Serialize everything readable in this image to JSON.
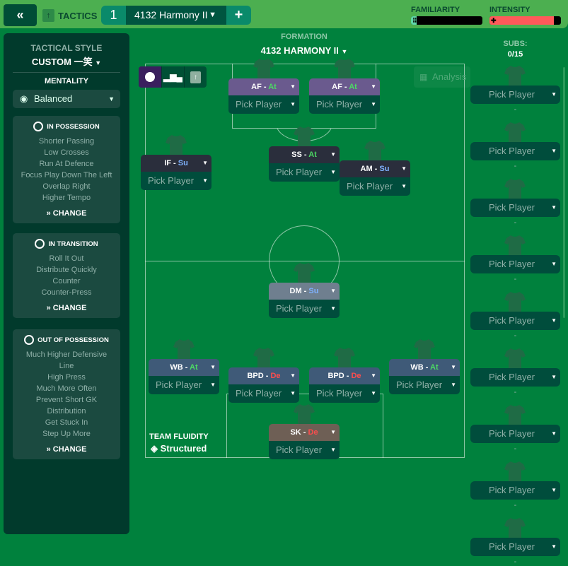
{
  "topbar": {
    "back_icon": "double-chevron-left",
    "section": "TACTICS",
    "tactic_slot": "1",
    "tactic_name": "4132 Harmony II",
    "add_label": "+",
    "familiarity_label": "FAMILIARITY",
    "familiarity_level": 0.08,
    "intensity_label": "INTENSITY",
    "intensity_level": 0.9,
    "colors": {
      "familiarity": "#5fd6a8",
      "intensity": "#ff5a5a"
    }
  },
  "left": {
    "tactical_style_label": "TACTICAL STYLE",
    "tactical_style": "CUSTOM 一笑",
    "mentality_label": "MENTALITY",
    "mentality": "Balanced",
    "cards": [
      {
        "title": "IN POSSESSION",
        "items": [
          "Shorter Passing",
          "Low Crosses",
          "Run At Defence",
          "Focus Play Down The Left",
          "Overlap Right",
          "Higher Tempo"
        ],
        "change": "CHANGE"
      },
      {
        "title": "IN TRANSITION",
        "items": [
          "Roll It Out",
          "Distribute Quickly",
          "Counter",
          "Counter-Press"
        ],
        "change": "CHANGE"
      },
      {
        "title": "OUT OF POSSESSION",
        "items": [
          "Much Higher Defensive",
          "Line",
          "High Press",
          "Much More Often",
          "Prevent Short GK",
          "Distribution",
          "Get Stuck In",
          "Step Up More"
        ],
        "change": "CHANGE"
      }
    ]
  },
  "formation": {
    "label": "FORMATION",
    "name": "4132 HARMONY II",
    "analysis": "Analysis",
    "fluidity_label": "TEAM FLUIDITY",
    "fluidity": "Structured"
  },
  "players": [
    {
      "role": "AF",
      "duty": "At",
      "pick": "Pick Player"
    },
    {
      "role": "AF",
      "duty": "At",
      "pick": "Pick Player"
    },
    {
      "role": "IF",
      "duty": "Su",
      "pick": "Pick Player"
    },
    {
      "role": "SS",
      "duty": "At",
      "pick": "Pick Player"
    },
    {
      "role": "AM",
      "duty": "Su",
      "pick": "Pick Player"
    },
    {
      "role": "DM",
      "duty": "Su",
      "pick": "Pick Player"
    },
    {
      "role": "WB",
      "duty": "At",
      "pick": "Pick Player"
    },
    {
      "role": "BPD",
      "duty": "De",
      "pick": "Pick Player"
    },
    {
      "role": "BPD",
      "duty": "De",
      "pick": "Pick Player"
    },
    {
      "role": "WB",
      "duty": "At",
      "pick": "Pick Player"
    },
    {
      "role": "SK",
      "duty": "De",
      "pick": "Pick Player"
    }
  ],
  "duty_colors": {
    "At": "#4cd964",
    "Su": "#7fb2ff",
    "De": "#ff4d4d"
  },
  "subs": {
    "label": "SUBS:",
    "count": "0/15",
    "pick": "Pick Player",
    "dash": "-"
  }
}
